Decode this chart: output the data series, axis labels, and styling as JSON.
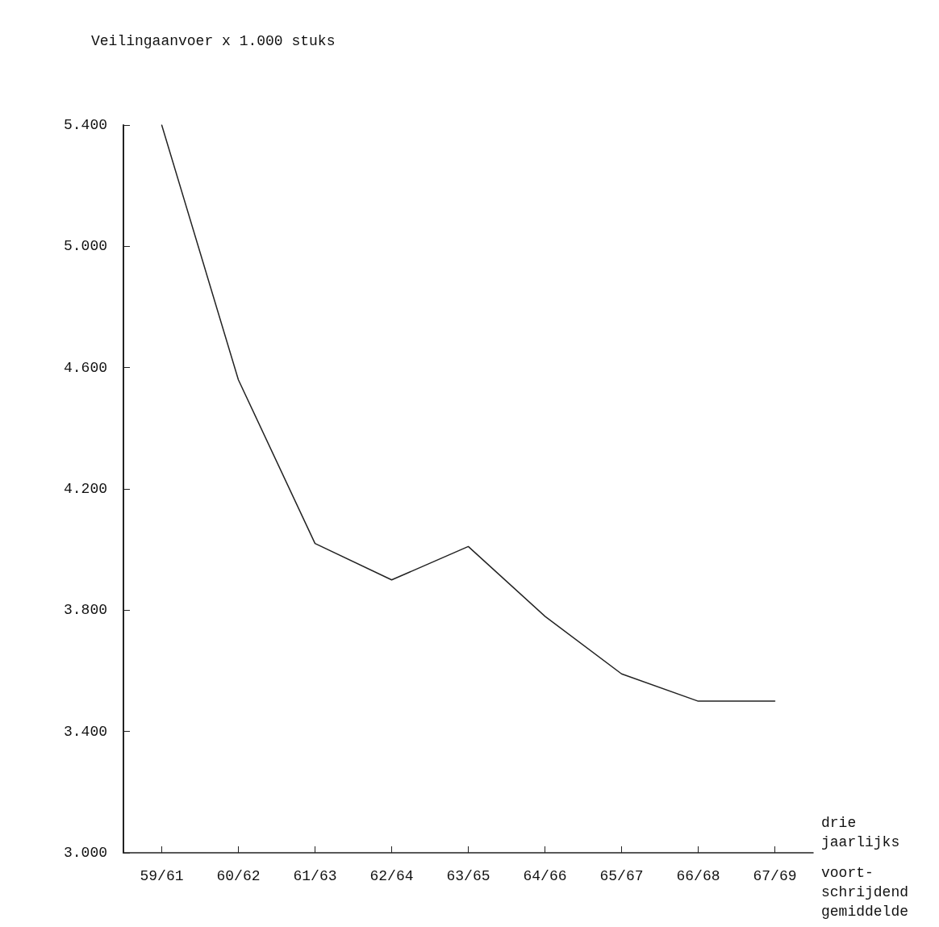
{
  "chart_data": {
    "type": "line",
    "ylabel": "Veilingaanvoer x 1.000 stuks",
    "categories": [
      "59/61",
      "60/62",
      "61/63",
      "62/64",
      "63/65",
      "64/66",
      "65/67",
      "66/68",
      "67/69"
    ],
    "series": [
      {
        "color": "#222222",
        "values": [
          5400,
          4560,
          4020,
          3900,
          4010,
          3780,
          3590,
          3500,
          3500
        ]
      }
    ],
    "ylim": [
      3000,
      5400
    ],
    "yticks": [
      {
        "value": 3000,
        "label": "3.000"
      },
      {
        "value": 3400,
        "label": "3.400"
      },
      {
        "value": 3800,
        "label": "3.800"
      },
      {
        "value": 4200,
        "label": "4.200"
      },
      {
        "value": 4600,
        "label": "4.600"
      },
      {
        "value": 5000,
        "label": "5.000"
      },
      {
        "value": 5400,
        "label": "5.400"
      }
    ],
    "annotations": [
      "drie\njaarlijks",
      "voort-\nschrijdend\ngemiddelde"
    ],
    "marker": "none",
    "line_style": "solid"
  }
}
